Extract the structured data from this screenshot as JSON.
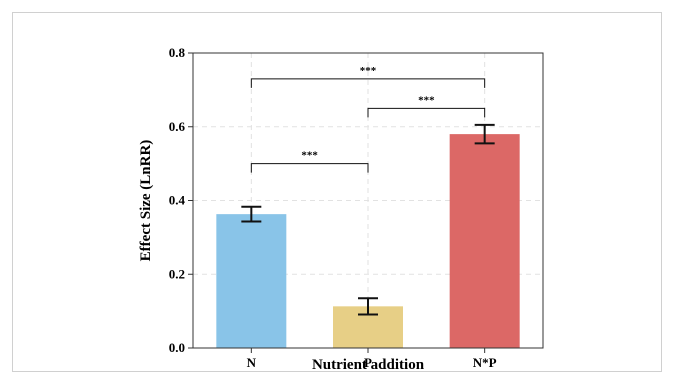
{
  "chart_data": {
    "type": "bar",
    "categories": [
      "N",
      "P",
      "N*P"
    ],
    "values": [
      0.363,
      0.113,
      0.58
    ],
    "errors": [
      0.02,
      0.022,
      0.025
    ],
    "colors": [
      "#89c4e8",
      "#e7cf86",
      "#dc6866"
    ],
    "title": "",
    "xlabel": "Nutrient addition",
    "ylabel": "Effect Size (LnRR)",
    "ylim": [
      0,
      0.8
    ],
    "yticks": [
      "0.0",
      "0.2",
      "0.4",
      "0.6",
      "0.8"
    ],
    "grid": true,
    "significance": [
      {
        "from": 0,
        "to": 2,
        "label": "***",
        "level": 0.73
      },
      {
        "from": 1,
        "to": 2,
        "label": "***",
        "level": 0.65
      },
      {
        "from": 0,
        "to": 1,
        "label": "***",
        "level": 0.5
      }
    ]
  }
}
